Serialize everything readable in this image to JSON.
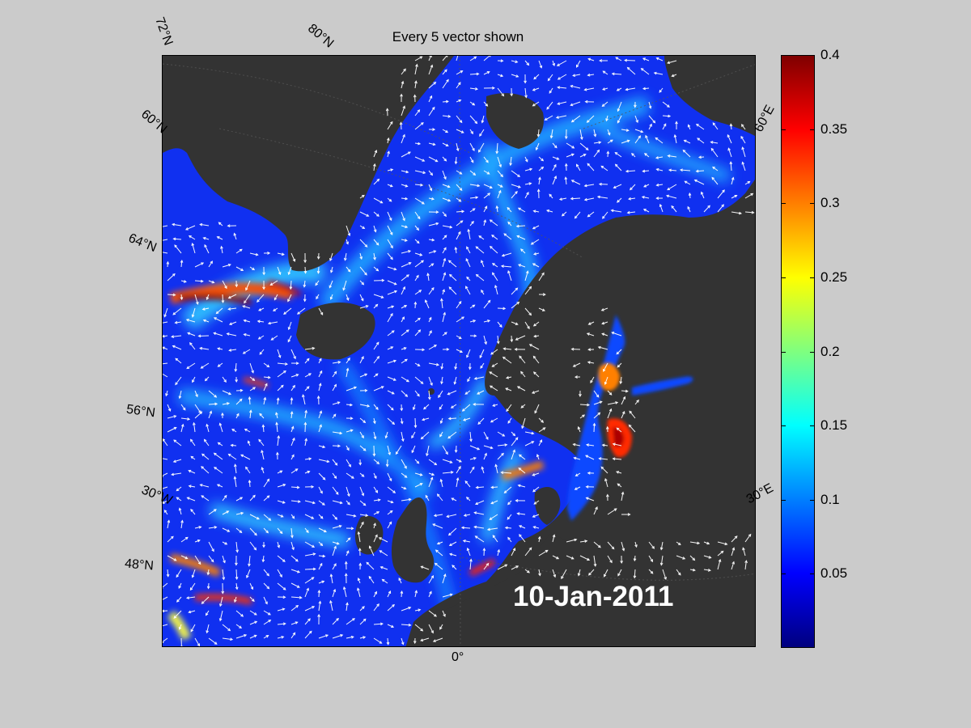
{
  "title": "Every 5 vector shown",
  "date": "10-Jan-2011",
  "lat_labels": [
    "72°N",
    "60°N",
    "64°N",
    "56°N",
    "48°N"
  ],
  "lon_labels": [
    "80°N",
    "30°W",
    "0°",
    "60°E",
    "30°E"
  ],
  "colorbar": {
    "ticks": [
      "0.4",
      "0.35",
      "0.3",
      "0.25",
      "0.2",
      "0.15",
      "0.1",
      "0.05"
    ],
    "tick_values": [
      0.4,
      0.35,
      0.3,
      0.25,
      0.2,
      0.15,
      0.1,
      0.05
    ],
    "range": [
      0,
      0.4
    ],
    "colormap": "jet",
    "colors": [
      "#00007f",
      "#0000ff",
      "#007fff",
      "#00ffff",
      "#7fff7f",
      "#ffff00",
      "#ff7f00",
      "#ff0000",
      "#7f0000"
    ]
  },
  "map": {
    "land_color": "#333333",
    "ocean_base_color": "#1030f0",
    "vector_color": "#ffffff"
  }
}
